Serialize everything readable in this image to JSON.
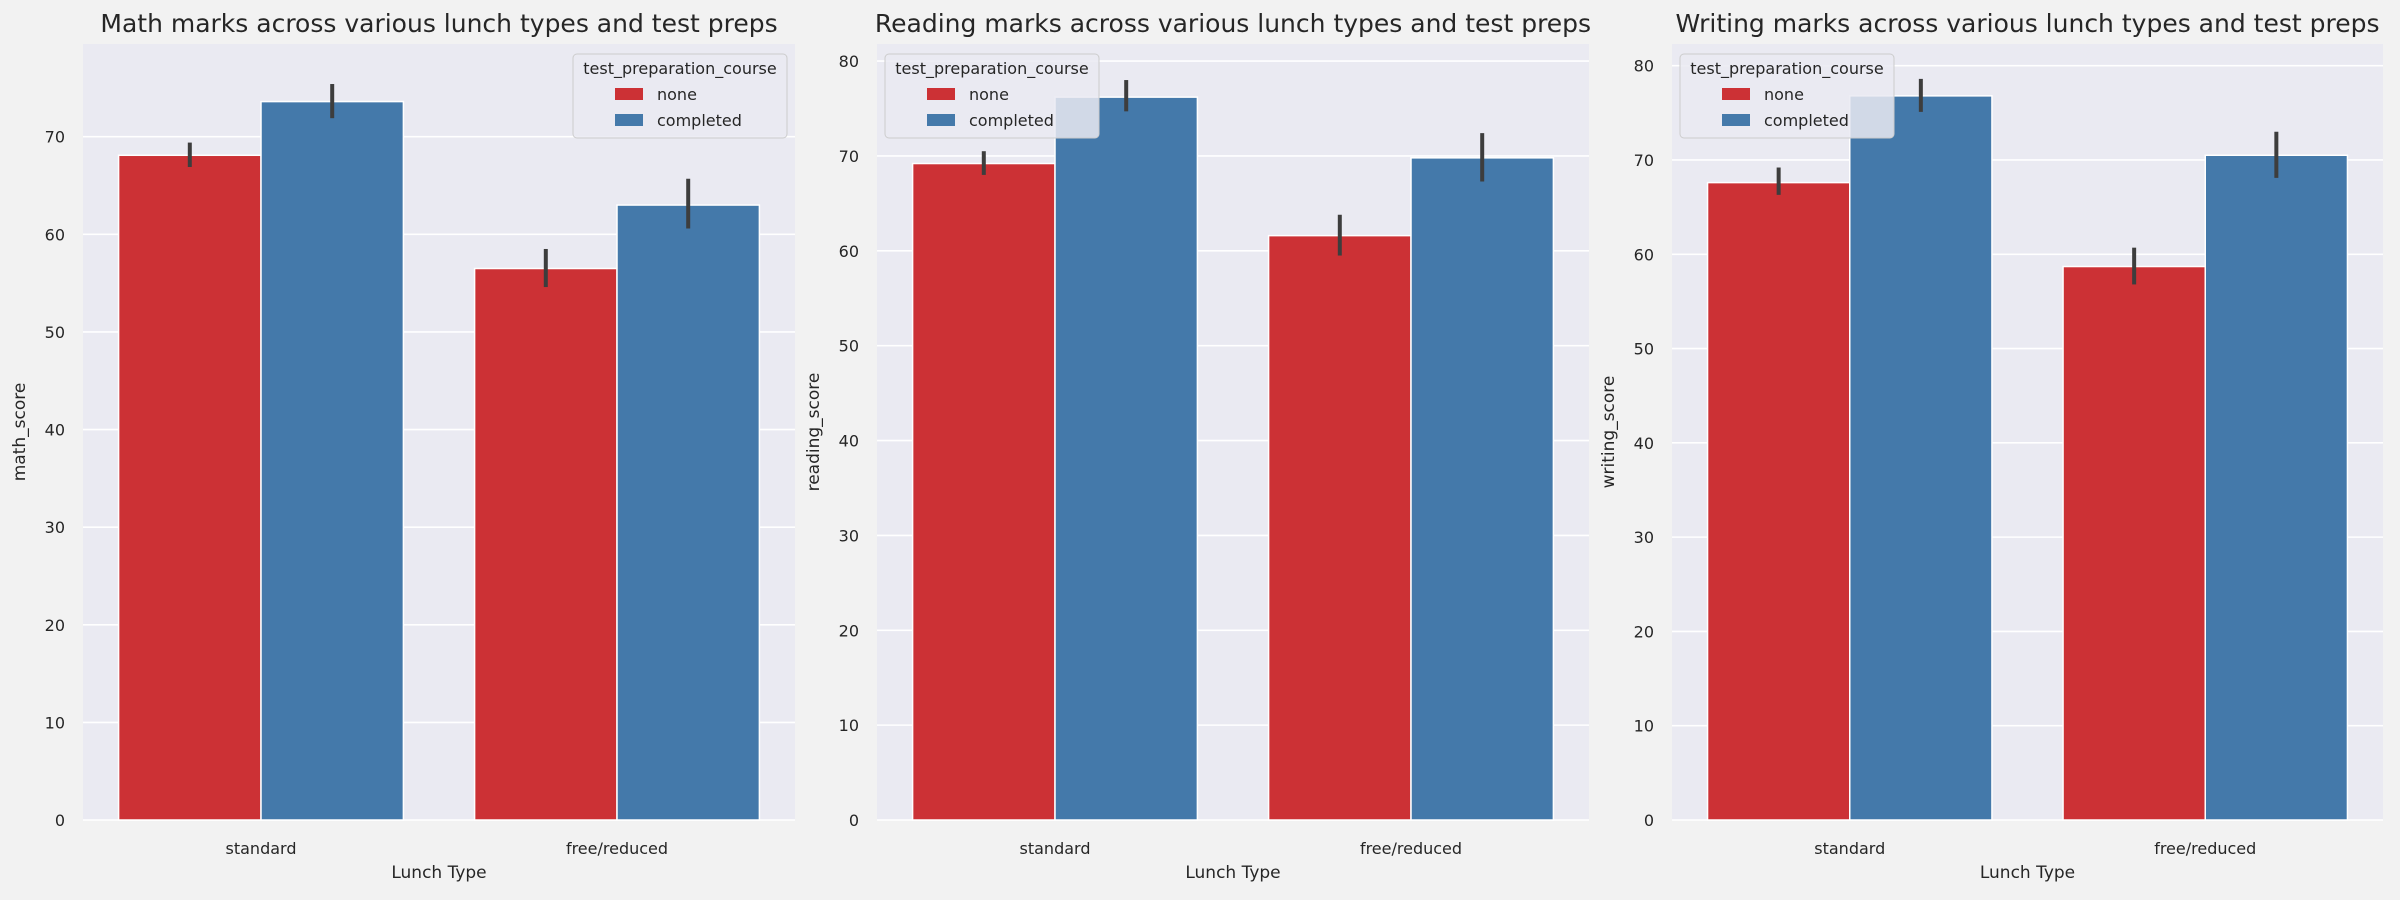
{
  "chart_data": [
    {
      "type": "bar",
      "title": "Math marks across various lunch types and test preps",
      "xlabel": "Lunch Type",
      "ylabel": "math_score",
      "categories": [
        "standard",
        "free/reduced"
      ],
      "ylim": [
        0,
        79.5
      ],
      "yticks": [
        0,
        10,
        20,
        30,
        40,
        50,
        60,
        70
      ],
      "grid": true,
      "legend": {
        "title": "test_preparation_course",
        "placement": "top-right"
      },
      "series": [
        {
          "name": "none",
          "color": "#cc3135",
          "values": [
            68.1,
            56.5
          ],
          "ci": [
            [
              66.9,
              69.4
            ],
            [
              54.6,
              58.5
            ]
          ]
        },
        {
          "name": "completed",
          "color": "#4479aa",
          "values": [
            73.6,
            63.0
          ],
          "ci": [
            [
              71.9,
              75.4
            ],
            [
              60.6,
              65.7
            ]
          ]
        }
      ]
    },
    {
      "type": "bar",
      "title": "Reading marks across various lunch types and test preps",
      "xlabel": "Lunch Type",
      "ylabel": "reading_score",
      "categories": [
        "standard",
        "free/reduced"
      ],
      "ylim": [
        0,
        81.8
      ],
      "yticks": [
        0,
        10,
        20,
        30,
        40,
        50,
        60,
        70,
        80
      ],
      "grid": true,
      "legend": {
        "title": "test_preparation_course",
        "placement": "top-left"
      },
      "series": [
        {
          "name": "none",
          "color": "#cc3135",
          "values": [
            69.2,
            61.6
          ],
          "ci": [
            [
              68.0,
              70.5
            ],
            [
              59.5,
              63.8
            ]
          ]
        },
        {
          "name": "completed",
          "color": "#4479aa",
          "values": [
            76.2,
            69.8
          ],
          "ci": [
            [
              74.7,
              78.0
            ],
            [
              67.3,
              72.4
            ]
          ]
        }
      ]
    },
    {
      "type": "bar",
      "title": "Writing marks across various lunch types and test preps",
      "xlabel": "Lunch Type",
      "ylabel": "writing_score",
      "categories": [
        "standard",
        "free/reduced"
      ],
      "ylim": [
        0,
        82.3
      ],
      "yticks": [
        0,
        10,
        20,
        30,
        40,
        50,
        60,
        70,
        80
      ],
      "grid": true,
      "legend": {
        "title": "test_preparation_course",
        "placement": "top-left"
      },
      "series": [
        {
          "name": "none",
          "color": "#cc3135",
          "values": [
            67.6,
            58.7
          ],
          "ci": [
            [
              66.3,
              69.2
            ],
            [
              56.8,
              60.7
            ]
          ]
        },
        {
          "name": "completed",
          "color": "#4479aa",
          "values": [
            76.8,
            70.5
          ],
          "ci": [
            [
              75.1,
              78.6
            ],
            [
              68.1,
              73.0
            ]
          ]
        }
      ]
    }
  ]
}
